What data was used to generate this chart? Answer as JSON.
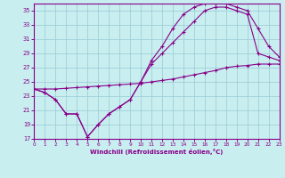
{
  "xlabel": "Windchill (Refroidissement éolien,°C)",
  "xlim": [
    0,
    23
  ],
  "ylim": [
    17,
    36
  ],
  "yticks": [
    17,
    19,
    21,
    23,
    25,
    27,
    29,
    31,
    33,
    35
  ],
  "xticks": [
    0,
    1,
    2,
    3,
    4,
    5,
    6,
    7,
    8,
    9,
    10,
    11,
    12,
    13,
    14,
    15,
    16,
    17,
    18,
    19,
    20,
    21,
    22,
    23
  ],
  "bg_color": "#c8eef0",
  "grid_color": "#a0cfd8",
  "line_color": "#880088",
  "line1_x": [
    0,
    1,
    2,
    3,
    4,
    5,
    6,
    7,
    8,
    9,
    10,
    11,
    12,
    13,
    14,
    15,
    16,
    17,
    18,
    19,
    20,
    21,
    22,
    23
  ],
  "line1_y": [
    24.0,
    23.5,
    22.5,
    20.5,
    20.5,
    17.3,
    19.0,
    20.5,
    21.5,
    22.5,
    25.0,
    28.0,
    30.0,
    32.5,
    34.5,
    35.5,
    36.0,
    36.0,
    36.0,
    35.5,
    35.0,
    32.5,
    30.0,
    28.5
  ],
  "line2_x": [
    0,
    1,
    2,
    3,
    4,
    5,
    6,
    7,
    8,
    9,
    10,
    11,
    12,
    13,
    14,
    15,
    16,
    17,
    18,
    19,
    20,
    21,
    22,
    23
  ],
  "line2_y": [
    24.0,
    23.5,
    22.5,
    20.5,
    20.5,
    17.3,
    19.0,
    20.5,
    21.5,
    22.5,
    25.0,
    27.5,
    29.0,
    30.5,
    32.0,
    33.5,
    35.0,
    35.5,
    35.5,
    35.0,
    34.5,
    29.0,
    28.5,
    28.0
  ],
  "line3_x": [
    0,
    1,
    2,
    3,
    4,
    5,
    6,
    7,
    8,
    9,
    10,
    11,
    12,
    13,
    14,
    15,
    16,
    17,
    18,
    19,
    20,
    21,
    22,
    23
  ],
  "line3_y": [
    24.0,
    24.0,
    24.0,
    24.1,
    24.2,
    24.3,
    24.4,
    24.5,
    24.6,
    24.7,
    24.8,
    25.0,
    25.2,
    25.4,
    25.7,
    26.0,
    26.3,
    26.6,
    27.0,
    27.2,
    27.3,
    27.5,
    27.5,
    27.5
  ]
}
